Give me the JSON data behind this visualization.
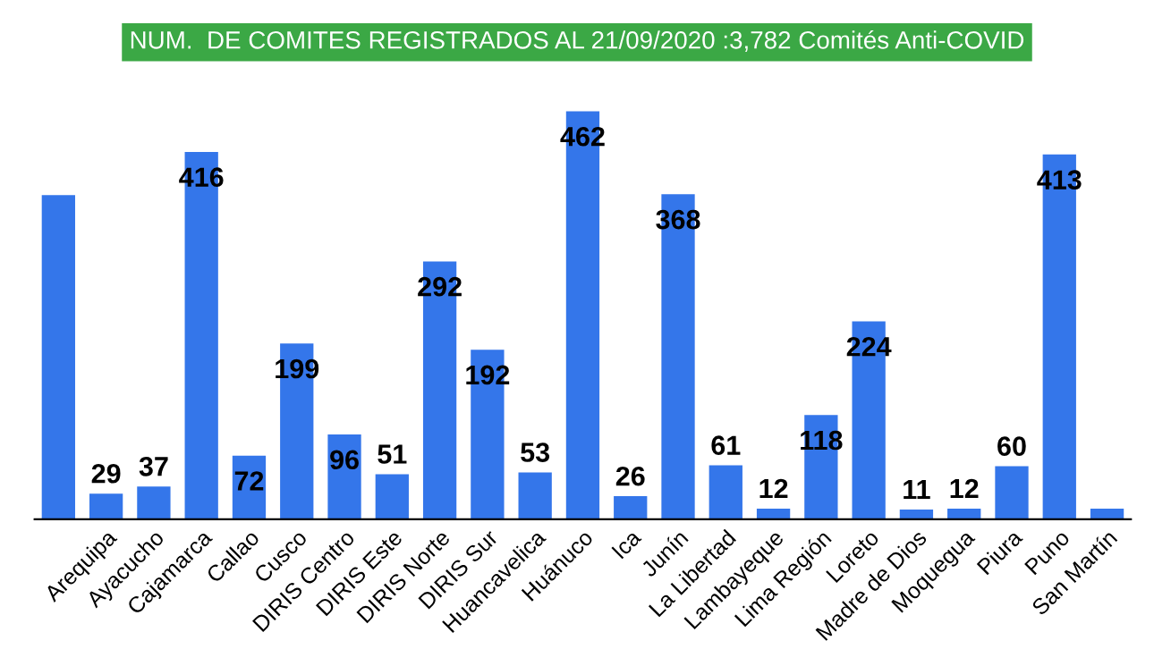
{
  "chart_data": {
    "type": "bar",
    "title": "NUM.  DE COMITES REGISTRADOS AL 21/09/2020 :3,782 Comités Anti-COVID",
    "categories": [
      null,
      "Arequipa",
      "Ayacucho",
      "Cajamarca",
      "Callao",
      "Cusco",
      "DIRIS Centro",
      "DIRIS Este",
      "DIRIS Norte",
      "DIRIS Sur",
      "Huancavelica",
      "Huánuco",
      "Ica",
      "Junín",
      "La Libertad",
      "Lambayeque",
      "Lima Región",
      "Loreto",
      "Madre de Dios",
      "Moquegua",
      "Piura",
      "Puno",
      "San Martín"
    ],
    "values": [
      367,
      29,
      37,
      416,
      72,
      199,
      96,
      51,
      292,
      192,
      53,
      462,
      26,
      368,
      61,
      12,
      118,
      224,
      11,
      12,
      60,
      413,
      12
    ],
    "value_labels": [
      null,
      "29",
      "37",
      "416",
      "72",
      "199",
      "96",
      "51",
      "292",
      "192",
      "53",
      "462",
      "26",
      "368",
      "61",
      "12",
      "118",
      "224",
      "11",
      "12",
      "60",
      "413",
      null
    ],
    "color": "#3476ea",
    "grid": false,
    "legend": false
  }
}
